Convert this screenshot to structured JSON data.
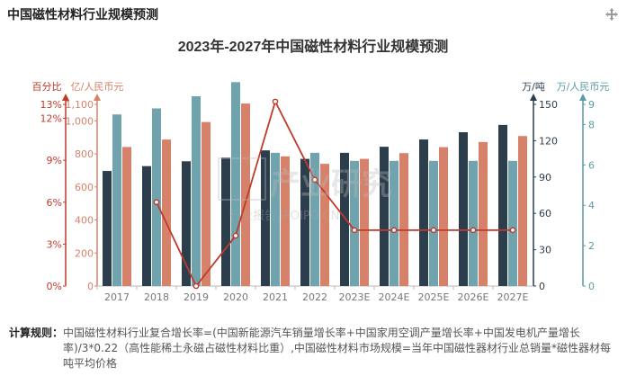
{
  "page": {
    "header_title": "中国磁性材料行业规模预测",
    "menu_icon": "move-icon"
  },
  "colors": {
    "red": "#c0392b",
    "salmon": "#d6826a",
    "teal": "#6fa3ad",
    "dark": "#2c3e4c",
    "axis_percent": "#c0392b",
    "axis_yi": "#d6826a",
    "axis_ton": "#2c3e4c",
    "axis_price": "#5d9aa6"
  },
  "chart_data": {
    "type": "bar",
    "title": "2023年-2027年中国磁性材料行业规模预测",
    "categories": [
      "2017",
      "2018",
      "2019",
      "2020",
      "2021",
      "2022",
      "2023E",
      "2024E",
      "2025E",
      "2026E",
      "2027E"
    ],
    "axes": {
      "percent": {
        "label": "百分比",
        "ticks": [
          "0%",
          "3%",
          "6%",
          "9%",
          "12%",
          "13%"
        ],
        "range": [
          0,
          13
        ]
      },
      "yi_yuan": {
        "label": "亿/人民币元",
        "ticks": [
          "0",
          "200",
          "400",
          "600",
          "800",
          "1,000",
          "1,100"
        ],
        "range": [
          0,
          1100
        ]
      },
      "wan_dun": {
        "label": "万/吨",
        "ticks": [
          "0",
          "30",
          "60",
          "90",
          "120",
          "150"
        ],
        "range": [
          0,
          150
        ]
      },
      "price": {
        "label": "万/人民币元",
        "ticks": [
          "0",
          "2",
          "4",
          "6",
          "8",
          "9"
        ],
        "range": [
          0,
          9
        ]
      }
    },
    "series": [
      {
        "key": "volume",
        "axis": "wan_dun",
        "type": "bar",
        "values": [
          95,
          99,
          103,
          106,
          112,
          105,
          110,
          115,
          121,
          127,
          133
        ]
      },
      {
        "key": "price",
        "axis": "price",
        "type": "bar",
        "values": [
          8.5,
          8.8,
          9.4,
          10.1,
          6.6,
          6.6,
          6.2,
          6.2,
          6.2,
          6.2,
          6.2
        ]
      },
      {
        "key": "market",
        "axis": "yi_yuan",
        "type": "bar",
        "values": [
          842,
          887,
          993,
          1105,
          785,
          740,
          770,
          805,
          841,
          872,
          908
        ]
      },
      {
        "key": "growth",
        "axis": "percent",
        "type": "line",
        "values": [
          null,
          6.0,
          0,
          3.6,
          13.2,
          7.6,
          4.0,
          4.0,
          4.0,
          4.0,
          4.0
        ]
      }
    ],
    "grid": false
  },
  "watermark": {
    "main": "华经产业研究院",
    "sub": "行业报告 IPOIPO.CN"
  },
  "footnote": {
    "label": "计算规则：",
    "text": "中国磁性材料行业复合增长率=(中国新能源汽车销量增长率+中国家用空调产量增长率+中国发电机产量增长率)/3*0.22（高性能稀土永磁占磁性材料比重）,中国磁性材料市场规模=当年中国磁性器材行业总销量*磁性器材每吨平均价格"
  }
}
